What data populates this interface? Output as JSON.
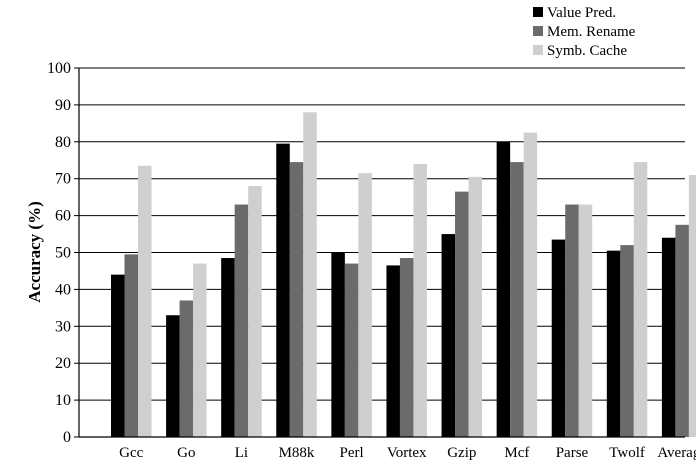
{
  "chart_data": {
    "type": "bar",
    "categories": [
      "Gcc",
      "Go",
      "Li",
      "M88k",
      "Perl",
      "Vortex",
      "Gzip",
      "Mcf",
      "Parse",
      "Twolf",
      "Average"
    ],
    "series": [
      {
        "name": "Value Pred.",
        "color": "#000000",
        "values": [
          44,
          33,
          48.5,
          79.5,
          50,
          46.5,
          55,
          80,
          53.5,
          50.5,
          54
        ]
      },
      {
        "name": "Mem. Rename",
        "color": "#6b6b6b",
        "values": [
          49.5,
          37,
          63,
          74.5,
          47,
          48.5,
          66.5,
          74.5,
          63,
          52,
          57.5
        ]
      },
      {
        "name": "Symb. Cache",
        "color": "#cfcfcf",
        "values": [
          73.5,
          47,
          68,
          88,
          71.5,
          74,
          70.5,
          82.5,
          63,
          74.5,
          71
        ]
      }
    ],
    "ylabel": "Accuracy (%)",
    "xlabel": "",
    "ylim": [
      0,
      100
    ],
    "yticks": [
      "0",
      "10",
      "20",
      "30",
      "40",
      "50",
      "60",
      "70",
      "80",
      "90",
      "100"
    ],
    "grid": true,
    "legend_position": "top-right"
  }
}
